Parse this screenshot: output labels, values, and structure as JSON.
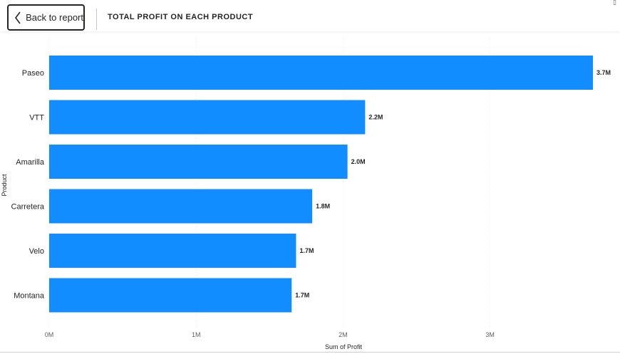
{
  "header": {
    "back_label": "Back to report",
    "title": "TOTAL PROFIT ON EACH PRODUCT",
    "corner_glyph": "▯",
    "back_icon": "chevron-left-icon"
  },
  "colors": {
    "bar": "#118DFF",
    "grid": "#E6E6E6",
    "text": "#252423",
    "axis_text": "#605E5C"
  },
  "chart_data": {
    "type": "bar",
    "orientation": "horizontal",
    "categories": [
      "Paseo",
      "VTT",
      "Amarilla",
      "Carretera",
      "Velo",
      "Montana"
    ],
    "values": [
      3700000,
      2150000,
      2030000,
      1790000,
      1680000,
      1650000
    ],
    "data_labels": [
      "3.7M",
      "2.2M",
      "2.0M",
      "1.8M",
      "1.7M",
      "1.7M"
    ],
    "xlabel": "Sum of Profit",
    "ylabel": "Product",
    "xlim": [
      0,
      3700000
    ],
    "x_ticks": [
      {
        "value": 0,
        "label": "0M"
      },
      {
        "value": 1000000,
        "label": "1M"
      },
      {
        "value": 2000000,
        "label": "2M"
      },
      {
        "value": 3000000,
        "label": "3M"
      }
    ],
    "grid": true,
    "grid_style": "dotted vertical"
  }
}
